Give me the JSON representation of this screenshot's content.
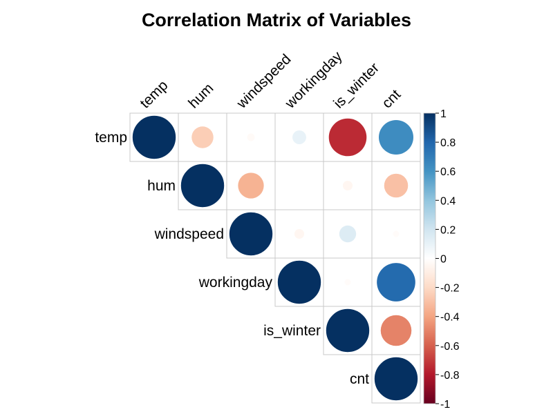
{
  "chart_data": {
    "type": "heatmap",
    "subtype": "correlation-upper-circle",
    "title": "Correlation Matrix of Variables",
    "variables": [
      "temp",
      "hum",
      "windspeed",
      "workingday",
      "is_winter",
      "cnt"
    ],
    "matrix": [
      [
        1.0,
        -0.25,
        -0.03,
        0.1,
        -0.75,
        0.63
      ],
      [
        -0.25,
        1.0,
        -0.35,
        0.0,
        -0.05,
        -0.3
      ],
      [
        -0.03,
        -0.35,
        1.0,
        -0.05,
        0.15,
        -0.02
      ],
      [
        0.1,
        0.0,
        -0.05,
        1.0,
        -0.02,
        0.78
      ],
      [
        -0.75,
        -0.05,
        0.15,
        -0.02,
        1.0,
        -0.5
      ],
      [
        0.63,
        -0.3,
        -0.02,
        0.78,
        -0.5,
        1.0
      ]
    ],
    "colorbar": {
      "range": [
        -1,
        1
      ],
      "ticks": [
        "-1",
        "-0.8",
        "-0.6",
        "-0.4",
        "-0.2",
        "0",
        "0.2",
        "0.4",
        "0.6",
        "0.8",
        "1"
      ],
      "colors": {
        "neg1": "#67001F",
        "neg08": "#B2182B",
        "neg06": "#D6604D",
        "neg04": "#F4A582",
        "neg02": "#FDDBC7",
        "zero": "#FFFFFF",
        "pos02": "#D1E5F0",
        "pos04": "#92C5DE",
        "pos06": "#4393C3",
        "pos08": "#2166AC",
        "pos1": "#053061"
      }
    },
    "grid": true,
    "legend_position": "right"
  }
}
